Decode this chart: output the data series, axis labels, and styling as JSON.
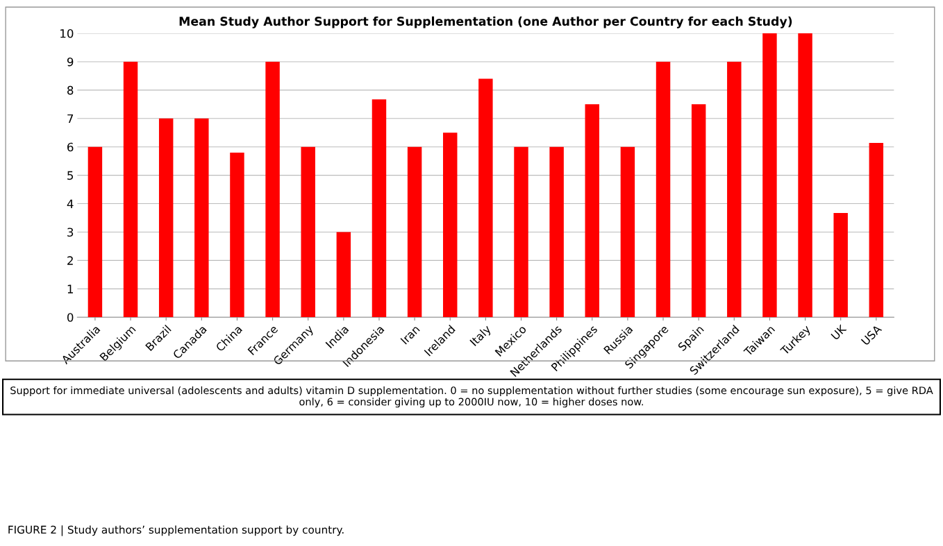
{
  "chart_data": {
    "type": "bar",
    "title": "Mean Study Author Support for Supplementation (one Author per Country for each Study)",
    "categories": [
      "Australia",
      "Belgium",
      "Brazil",
      "Canada",
      "China",
      "France",
      "Germany",
      "India",
      "Indonesia",
      "Iran",
      "Ireland",
      "Italy",
      "Mexico",
      "Netherlands",
      "Philippines",
      "Russia",
      "Singapore",
      "Spain",
      "Switzerland",
      "Taiwan",
      "Turkey",
      "UK",
      "USA"
    ],
    "values": [
      6,
      9,
      7,
      7,
      5.8,
      9,
      6,
      3,
      7.67,
      6,
      6.5,
      8.4,
      6,
      6,
      7.5,
      6,
      9,
      7.5,
      9,
      10,
      10,
      3.67,
      6.14
    ],
    "color": "#ff0000",
    "ylim": [
      0,
      10
    ],
    "yticks": [
      0,
      1,
      2,
      3,
      4,
      5,
      6,
      7,
      8,
      9,
      10
    ],
    "grid": "y",
    "annotations": [
      "Support for immediate universal (adolescents and adults) vitamin D supplementation. 0 = no supplementation without further studies (some encourage sun exposure), 5 = give RDA only, 6 = consider giving up to 2000IU now, 10 = higher doses now.",
      "FIGURE 2 | Study authors’ supplementation support by country."
    ]
  }
}
